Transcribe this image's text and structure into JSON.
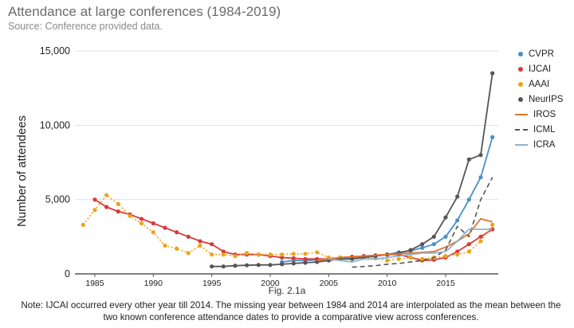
{
  "title": "Attendance at large conferences (1984-2019)",
  "subtitle": "Source: Conference provided data.",
  "figure_label": "Fig. 2.1a",
  "note": "Note: IJCAI occurred every other year till 2014. The missing year between 1984 and 2014 are interpolated as the mean between the two known conference attendance dates to provide a comparative view across conferences.",
  "chart_data": {
    "type": "line",
    "ylabel": "Number of attendees",
    "xlim": [
      1983.3,
      2019.5
    ],
    "ylim": [
      0,
      15000
    ],
    "x_ticks": [
      1985,
      1990,
      1995,
      2000,
      2005,
      2010,
      2015
    ],
    "y_ticks": [
      0,
      5000,
      10000,
      15000
    ],
    "y_tick_labels": [
      "0",
      "5,000",
      "10,000",
      "15,000"
    ],
    "grid": "horizontal",
    "legend_position": "right",
    "series": [
      {
        "name": "CVPR",
        "color": "#4a90c8",
        "style": "dots",
        "x": [
          2001,
          2002,
          2003,
          2004,
          2005,
          2006,
          2007,
          2008,
          2009,
          2010,
          2011,
          2012,
          2013,
          2014,
          2015,
          2016,
          2017,
          2018,
          2019
        ],
        "y": [
          800,
          900,
          900,
          950,
          1000,
          1050,
          1100,
          1150,
          1200,
          1300,
          1450,
          1550,
          1750,
          2000,
          2500,
          3600,
          5000,
          6500,
          9200
        ]
      },
      {
        "name": "IJCAI",
        "color": "#d93a3a",
        "style": "dots",
        "x": [
          1985,
          1986,
          1987,
          1988,
          1989,
          1990,
          1991,
          1992,
          1993,
          1994,
          1995,
          1996,
          1997,
          1998,
          1999,
          2000,
          2001,
          2002,
          2003,
          2004,
          2005,
          2006,
          2007,
          2008,
          2009,
          2010,
          2011,
          2012,
          2013,
          2014,
          2015,
          2016,
          2017,
          2018,
          2019
        ],
        "y": [
          5000,
          4500,
          4200,
          4000,
          3700,
          3400,
          3100,
          2800,
          2500,
          2200,
          2000,
          1500,
          1300,
          1300,
          1300,
          1200,
          1100,
          1050,
          1000,
          1000,
          1000,
          1100,
          1150,
          1200,
          1250,
          1300,
          1300,
          1100,
          900,
          950,
          1100,
          1500,
          2000,
          2500,
          3000
        ]
      },
      {
        "name": "AAAI",
        "color": "#e8a51c",
        "style": "dotted-line",
        "x": [
          1984,
          1985,
          1986,
          1987,
          1988,
          1989,
          1990,
          1991,
          1992,
          1993,
          1994,
          1995,
          1996,
          1997,
          1998,
          1999,
          2000,
          2001,
          2002,
          2003,
          2004,
          2005,
          2006,
          2007,
          2008,
          2009,
          2010,
          2011,
          2012,
          2013,
          2014,
          2015,
          2016,
          2017,
          2018,
          2019
        ],
        "y": [
          3300,
          4300,
          5300,
          4700,
          3900,
          3400,
          2800,
          1900,
          1700,
          1400,
          1900,
          1300,
          1300,
          1200,
          1400,
          1300,
          1300,
          1300,
          1350,
          1350,
          1450,
          1100,
          1100,
          1050,
          1100,
          1050,
          900,
          1000,
          1100,
          1000,
          1100,
          1200,
          1300,
          1500,
          2200,
          3300
        ]
      },
      {
        "name": "NeurIPS",
        "color": "#555555",
        "style": "dots",
        "x": [
          1995,
          1996,
          1997,
          1998,
          1999,
          2000,
          2001,
          2002,
          2003,
          2004,
          2005,
          2006,
          2007,
          2008,
          2009,
          2010,
          2011,
          2012,
          2013,
          2014,
          2015,
          2016,
          2017,
          2018,
          2019
        ],
        "y": [
          500,
          500,
          550,
          580,
          600,
          600,
          650,
          700,
          750,
          800,
          900,
          1000,
          1000,
          1100,
          1200,
          1300,
          1400,
          1600,
          2000,
          2500,
          3800,
          5200,
          7700,
          8000,
          13500
        ]
      },
      {
        "name": "IROS",
        "color": "#e0762f",
        "style": "line",
        "x": [
          2004,
          2005,
          2006,
          2007,
          2008,
          2009,
          2010,
          2011,
          2012,
          2013,
          2014,
          2015,
          2016,
          2017,
          2018,
          2019
        ],
        "y": [
          900,
          1000,
          1100,
          1150,
          1200,
          1250,
          1300,
          1350,
          1400,
          1450,
          1500,
          1800,
          2200,
          2700,
          3700,
          3500
        ]
      },
      {
        "name": "ICML",
        "color": "#555555",
        "style": "dashed",
        "x": [
          2007,
          2008,
          2009,
          2010,
          2011,
          2012,
          2013,
          2014,
          2015,
          2016,
          2017,
          2018,
          2019
        ],
        "y": [
          450,
          500,
          550,
          650,
          700,
          800,
          900,
          1100,
          1600,
          3200,
          2500,
          5000,
          6500
        ]
      },
      {
        "name": "ICRA",
        "color": "#8fb0d3",
        "style": "line",
        "x": [
          2005,
          2006,
          2007,
          2008,
          2009,
          2010,
          2011,
          2012,
          2013,
          2014,
          2015,
          2016,
          2017,
          2018,
          2019
        ],
        "y": [
          1000,
          900,
          800,
          1000,
          1000,
          1100,
          1200,
          1300,
          1400,
          1400,
          1500,
          2200,
          3000,
          3000,
          3000
        ]
      }
    ]
  }
}
